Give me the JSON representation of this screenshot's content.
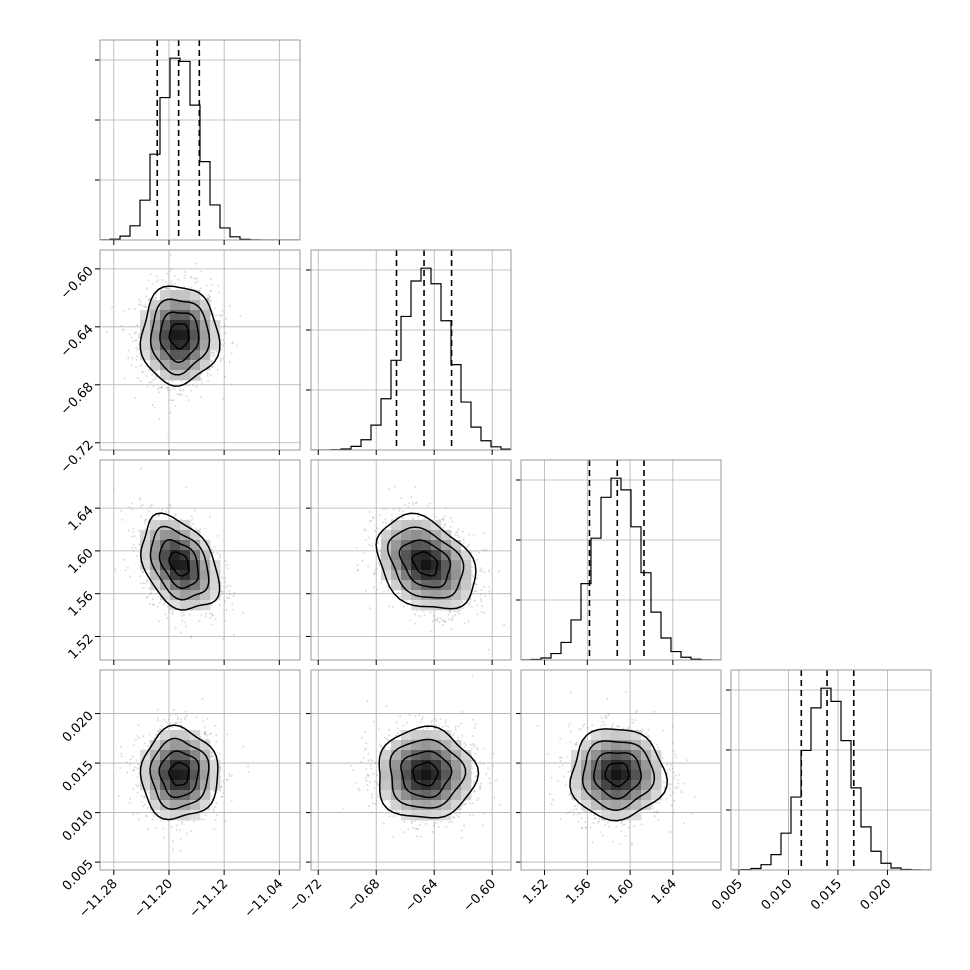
{
  "chart_data": {
    "type": "corner",
    "title": "",
    "parameters": [
      {
        "index": 0,
        "mean": -11.185,
        "sigma": 0.028,
        "quantiles": [
          -11.217,
          -11.186,
          -11.156
        ],
        "range": [
          -11.3,
          -11.01
        ],
        "ticks": [
          -11.28,
          -11.2,
          -11.12,
          -11.04
        ],
        "tick_labels": [
          "−11.28",
          "−11.20",
          "−11.12",
          "−11.04"
        ]
      },
      {
        "index": 1,
        "mean": -0.646,
        "sigma": 0.017,
        "quantiles": [
          -0.666,
          -0.647,
          -0.628
        ],
        "range": [
          -0.725,
          -0.587
        ],
        "ticks": [
          -0.72,
          -0.68,
          -0.64,
          -0.6
        ],
        "tick_labels": [
          "−0.72",
          "−0.68",
          "−0.64",
          "−0.60"
        ]
      },
      {
        "index": 2,
        "mean": 1.588,
        "sigma": 0.022,
        "quantiles": [
          1.562,
          1.588,
          1.613
        ],
        "range": [
          1.498,
          1.685
        ],
        "ticks": [
          1.52,
          1.56,
          1.6,
          1.64
        ],
        "tick_labels": [
          "1.52",
          "1.56",
          "1.60",
          "1.64"
        ]
      },
      {
        "index": 3,
        "mean": 0.0139,
        "sigma": 0.0023,
        "quantiles": [
          0.0113,
          0.0139,
          0.0166
        ],
        "range": [
          0.0042,
          0.0244
        ],
        "ticks": [
          0.005,
          0.01,
          0.015,
          0.02
        ],
        "tick_labels": [
          "0.005",
          "0.010",
          "0.015",
          "0.020"
        ]
      }
    ],
    "correlations": [
      {
        "pair": [
          0,
          1
        ],
        "rho": 0.0
      },
      {
        "pair": [
          0,
          2
        ],
        "rho": -0.35
      },
      {
        "pair": [
          1,
          2
        ],
        "rho": -0.3
      },
      {
        "pair": [
          0,
          3
        ],
        "rho": 0.0
      },
      {
        "pair": [
          1,
          3
        ],
        "rho": 0.0
      },
      {
        "pair": [
          2,
          3
        ],
        "rho": 0.0
      }
    ],
    "histogram_bins": 20,
    "contour_levels_sigma": [
      0.5,
      1.0,
      1.5,
      2.0
    ],
    "grid": true,
    "xlabel": "",
    "ylabel": ""
  }
}
